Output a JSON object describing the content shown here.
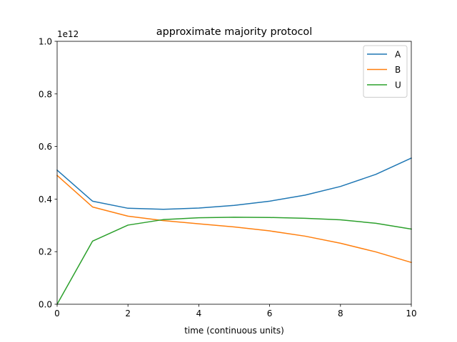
{
  "chart_data": {
    "type": "line",
    "title": "approximate majority protocol",
    "xlabel": "time (continuous units)",
    "ylabel": "",
    "y_offset_label": "1e12",
    "xlim": [
      0,
      10
    ],
    "ylim": [
      0,
      1.0
    ],
    "x_ticks": [
      "0",
      "2",
      "4",
      "6",
      "8",
      "10"
    ],
    "y_ticks": [
      "0.0",
      "0.2",
      "0.4",
      "0.6",
      "0.8",
      "1.0"
    ],
    "grid": false,
    "legend_position": "top-right",
    "x": [
      0,
      1,
      2,
      3,
      4,
      5,
      6,
      7,
      8,
      9,
      10
    ],
    "series": [
      {
        "name": "A",
        "color": "#1f77b4",
        "values": [
          0.51,
          0.392,
          0.365,
          0.361,
          0.366,
          0.376,
          0.392,
          0.415,
          0.448,
          0.494,
          0.556
        ]
      },
      {
        "name": "B",
        "color": "#ff7f0e",
        "values": [
          0.49,
          0.37,
          0.335,
          0.318,
          0.306,
          0.294,
          0.279,
          0.259,
          0.232,
          0.199,
          0.159
        ]
      },
      {
        "name": "U",
        "color": "#2ca02c",
        "values": [
          0.0,
          0.24,
          0.301,
          0.322,
          0.329,
          0.331,
          0.33,
          0.327,
          0.321,
          0.308,
          0.286
        ]
      }
    ]
  }
}
